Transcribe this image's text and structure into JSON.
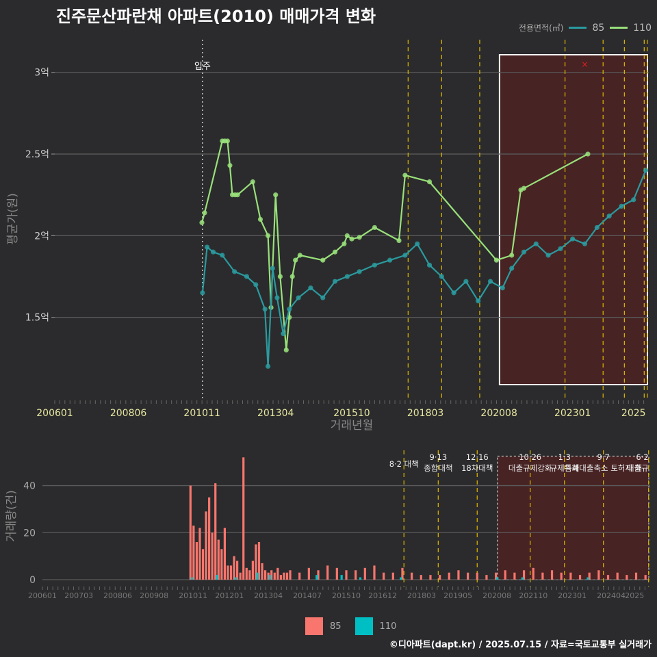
{
  "title": "진주문산파란채 아파트(2010) 매매가격 변화",
  "footer": "©디아파트(dapt.kr) / 2025.07.15 / 자료=국토교통부 실거래가",
  "colors": {
    "c85": "#2a9b9f",
    "c110": "#99e07a",
    "bar85": "#f8766d",
    "bar110": "#00bfc4",
    "policy": "#d4b000",
    "highlight": "#5e1e1e"
  },
  "chart_data": [
    {
      "type": "line",
      "title": "진주문산파란채 아파트(2010) 매매가격 변화",
      "xlabel": "거래년월",
      "ylabel": "평균가(원)",
      "xlim": [
        2006.0,
        2025.5
      ],
      "ylim": [
        1.0,
        3.2
      ],
      "x_ticks": [
        "200601",
        "200806",
        "201011",
        "201304",
        "201510",
        "201803",
        "202008",
        "202301",
        "2025"
      ],
      "y_ticks": [
        "1.5억",
        "2억",
        "2.5억",
        "3억"
      ],
      "legend": {
        "title": "전용면적(㎡)",
        "items": [
          "85",
          "110"
        ],
        "position": "top-right"
      },
      "annotations": {
        "move_in": {
          "label": "입주",
          "x": 2010.85
        },
        "policy_lines": [
          2017.6,
          2018.7,
          2019.95,
          2022.75,
          2024.0,
          2024.7,
          2025.35,
          2025.45
        ],
        "highlight_range": [
          2020.6,
          2025.5
        ],
        "max_marker": {
          "x": 2023.4,
          "y": 3.05
        }
      },
      "series": [
        {
          "name": "110",
          "x": [
            2010.83,
            2010.92,
            2011.5,
            2011.58,
            2011.67,
            2011.75,
            2011.83,
            2011.92,
            2012.0,
            2012.5,
            2012.75,
            2013.0,
            2013.1,
            2013.25,
            2013.4,
            2013.6,
            2013.7,
            2013.8,
            2013.9,
            2014.05,
            2014.8,
            2015.2,
            2015.5,
            2015.6,
            2015.75,
            2016.0,
            2016.5,
            2017.3,
            2017.5,
            2018.3,
            2020.5,
            2021.0,
            2021.3,
            2021.4,
            2023.5
          ],
          "values": [
            2.08,
            2.14,
            2.58,
            2.58,
            2.58,
            2.43,
            2.25,
            2.25,
            2.25,
            2.33,
            2.1,
            2.0,
            1.56,
            2.25,
            1.75,
            1.3,
            1.5,
            1.75,
            1.85,
            1.88,
            1.85,
            1.9,
            1.95,
            2.0,
            1.98,
            1.99,
            2.05,
            1.97,
            2.37,
            2.33,
            1.85,
            1.88,
            2.28,
            2.29,
            2.5
          ]
        },
        {
          "name": "85",
          "x": [
            2010.85,
            2011.0,
            2011.2,
            2011.5,
            2011.9,
            2012.3,
            2012.6,
            2012.9,
            2013.0,
            2013.15,
            2013.3,
            2013.5,
            2013.7,
            2014.0,
            2014.4,
            2014.8,
            2015.2,
            2015.6,
            2016.0,
            2016.5,
            2017.0,
            2017.5,
            2017.9,
            2018.3,
            2018.7,
            2019.1,
            2019.5,
            2019.9,
            2020.3,
            2020.7,
            2021.0,
            2021.4,
            2021.8,
            2022.2,
            2022.6,
            2023.0,
            2023.4,
            2023.8,
            2024.2,
            2024.6,
            2025.0,
            2025.4
          ],
          "values": [
            1.65,
            1.93,
            1.9,
            1.88,
            1.78,
            1.75,
            1.7,
            1.55,
            1.2,
            1.8,
            1.62,
            1.4,
            1.55,
            1.62,
            1.68,
            1.62,
            1.72,
            1.75,
            1.78,
            1.82,
            1.85,
            1.88,
            1.95,
            1.82,
            1.75,
            1.65,
            1.72,
            1.6,
            1.72,
            1.68,
            1.8,
            1.9,
            1.95,
            1.88,
            1.92,
            1.98,
            1.95,
            2.05,
            2.12,
            2.18,
            2.22,
            2.4
          ]
        }
      ]
    },
    {
      "type": "bar",
      "ylabel": "거래량(건)",
      "xlim": [
        2006.0,
        2025.5
      ],
      "ylim": [
        0,
        55
      ],
      "x_ticks": [
        "200601",
        "200703",
        "200806",
        "200908",
        "201011",
        "201201",
        "201304",
        "201407",
        "201510",
        "201612",
        "201803",
        "201905",
        "202008",
        "202110",
        "202301",
        "202404",
        "2025"
      ],
      "y_ticks": [
        "0",
        "20",
        "40"
      ],
      "legend": {
        "items": [
          "85",
          "110"
        ],
        "position": "bottom"
      },
      "policy_labels": [
        {
          "x": 2017.6,
          "lines": [
            "8·2 대책"
          ]
        },
        {
          "x": 2018.7,
          "lines": [
            "9·13",
            "종합대책"
          ]
        },
        {
          "x": 2019.95,
          "lines": [
            "12·16",
            "18차대책"
          ]
        },
        {
          "x": 2021.65,
          "lines": [
            "10·26",
            "대출규제강화"
          ]
        },
        {
          "x": 2022.75,
          "lines": [
            "1·3",
            "규제완화"
          ]
        },
        {
          "x": 2024.0,
          "lines": [
            "9·7",
            "특례대출축소 토허제 해"
          ]
        },
        {
          "x": 2025.45,
          "lines": [
            "6·2",
            "대출규"
          ]
        }
      ],
      "highlight_range": [
        2020.6,
        2025.5
      ],
      "series": [
        {
          "name": "85",
          "x": [
            2010.75,
            2010.85,
            2010.95,
            2011.05,
            2011.15,
            2011.25,
            2011.35,
            2011.45,
            2011.55,
            2011.65,
            2011.75,
            2011.85,
            2011.95,
            2012.05,
            2012.15,
            2012.25,
            2012.35,
            2012.45,
            2012.55,
            2012.65,
            2012.75,
            2012.85,
            2012.95,
            2013.05,
            2013.15,
            2013.25,
            2013.35,
            2013.45,
            2013.55,
            2013.65,
            2013.75,
            2013.85,
            2013.95,
            2014.25,
            2014.55,
            2014.85,
            2015.15,
            2015.45,
            2015.75,
            2016.05,
            2016.35,
            2016.65,
            2016.95,
            2017.25,
            2017.55,
            2017.85,
            2018.15,
            2018.45,
            2018.75,
            2019.05,
            2019.35,
            2019.65,
            2019.95,
            2020.25,
            2020.55,
            2020.85,
            2021.15,
            2021.45,
            2021.75,
            2022.05,
            2022.35,
            2022.65,
            2022.95,
            2023.25,
            2023.55,
            2023.85,
            2024.15,
            2024.45,
            2024.75,
            2025.05,
            2025.35
          ],
          "values": [
            40,
            23,
            16,
            22,
            13,
            29,
            35,
            20,
            41,
            17,
            13,
            22,
            6,
            6,
            10,
            8,
            3,
            52,
            5,
            4,
            8,
            15,
            16,
            7,
            4,
            3,
            4,
            3,
            5,
            2,
            3,
            3,
            4,
            3,
            5,
            4,
            6,
            5,
            4,
            4,
            5,
            6,
            3,
            3,
            5,
            3,
            2,
            2,
            2,
            3,
            4,
            3,
            3,
            2,
            3,
            4,
            3,
            4,
            5,
            3,
            4,
            3,
            3,
            2,
            3,
            4,
            2,
            3,
            2,
            3,
            2
          ]
        },
        {
          "name": "110",
          "x": [
            2010.8,
            2011.6,
            2012.2,
            2012.9,
            2013.3,
            2014.8,
            2015.6,
            2016.2,
            2017.5,
            2020.6,
            2021.4,
            2023.5
          ],
          "values": [
            1,
            2,
            1,
            3,
            2,
            2,
            2,
            1,
            1,
            1,
            1,
            1
          ]
        }
      ]
    }
  ]
}
